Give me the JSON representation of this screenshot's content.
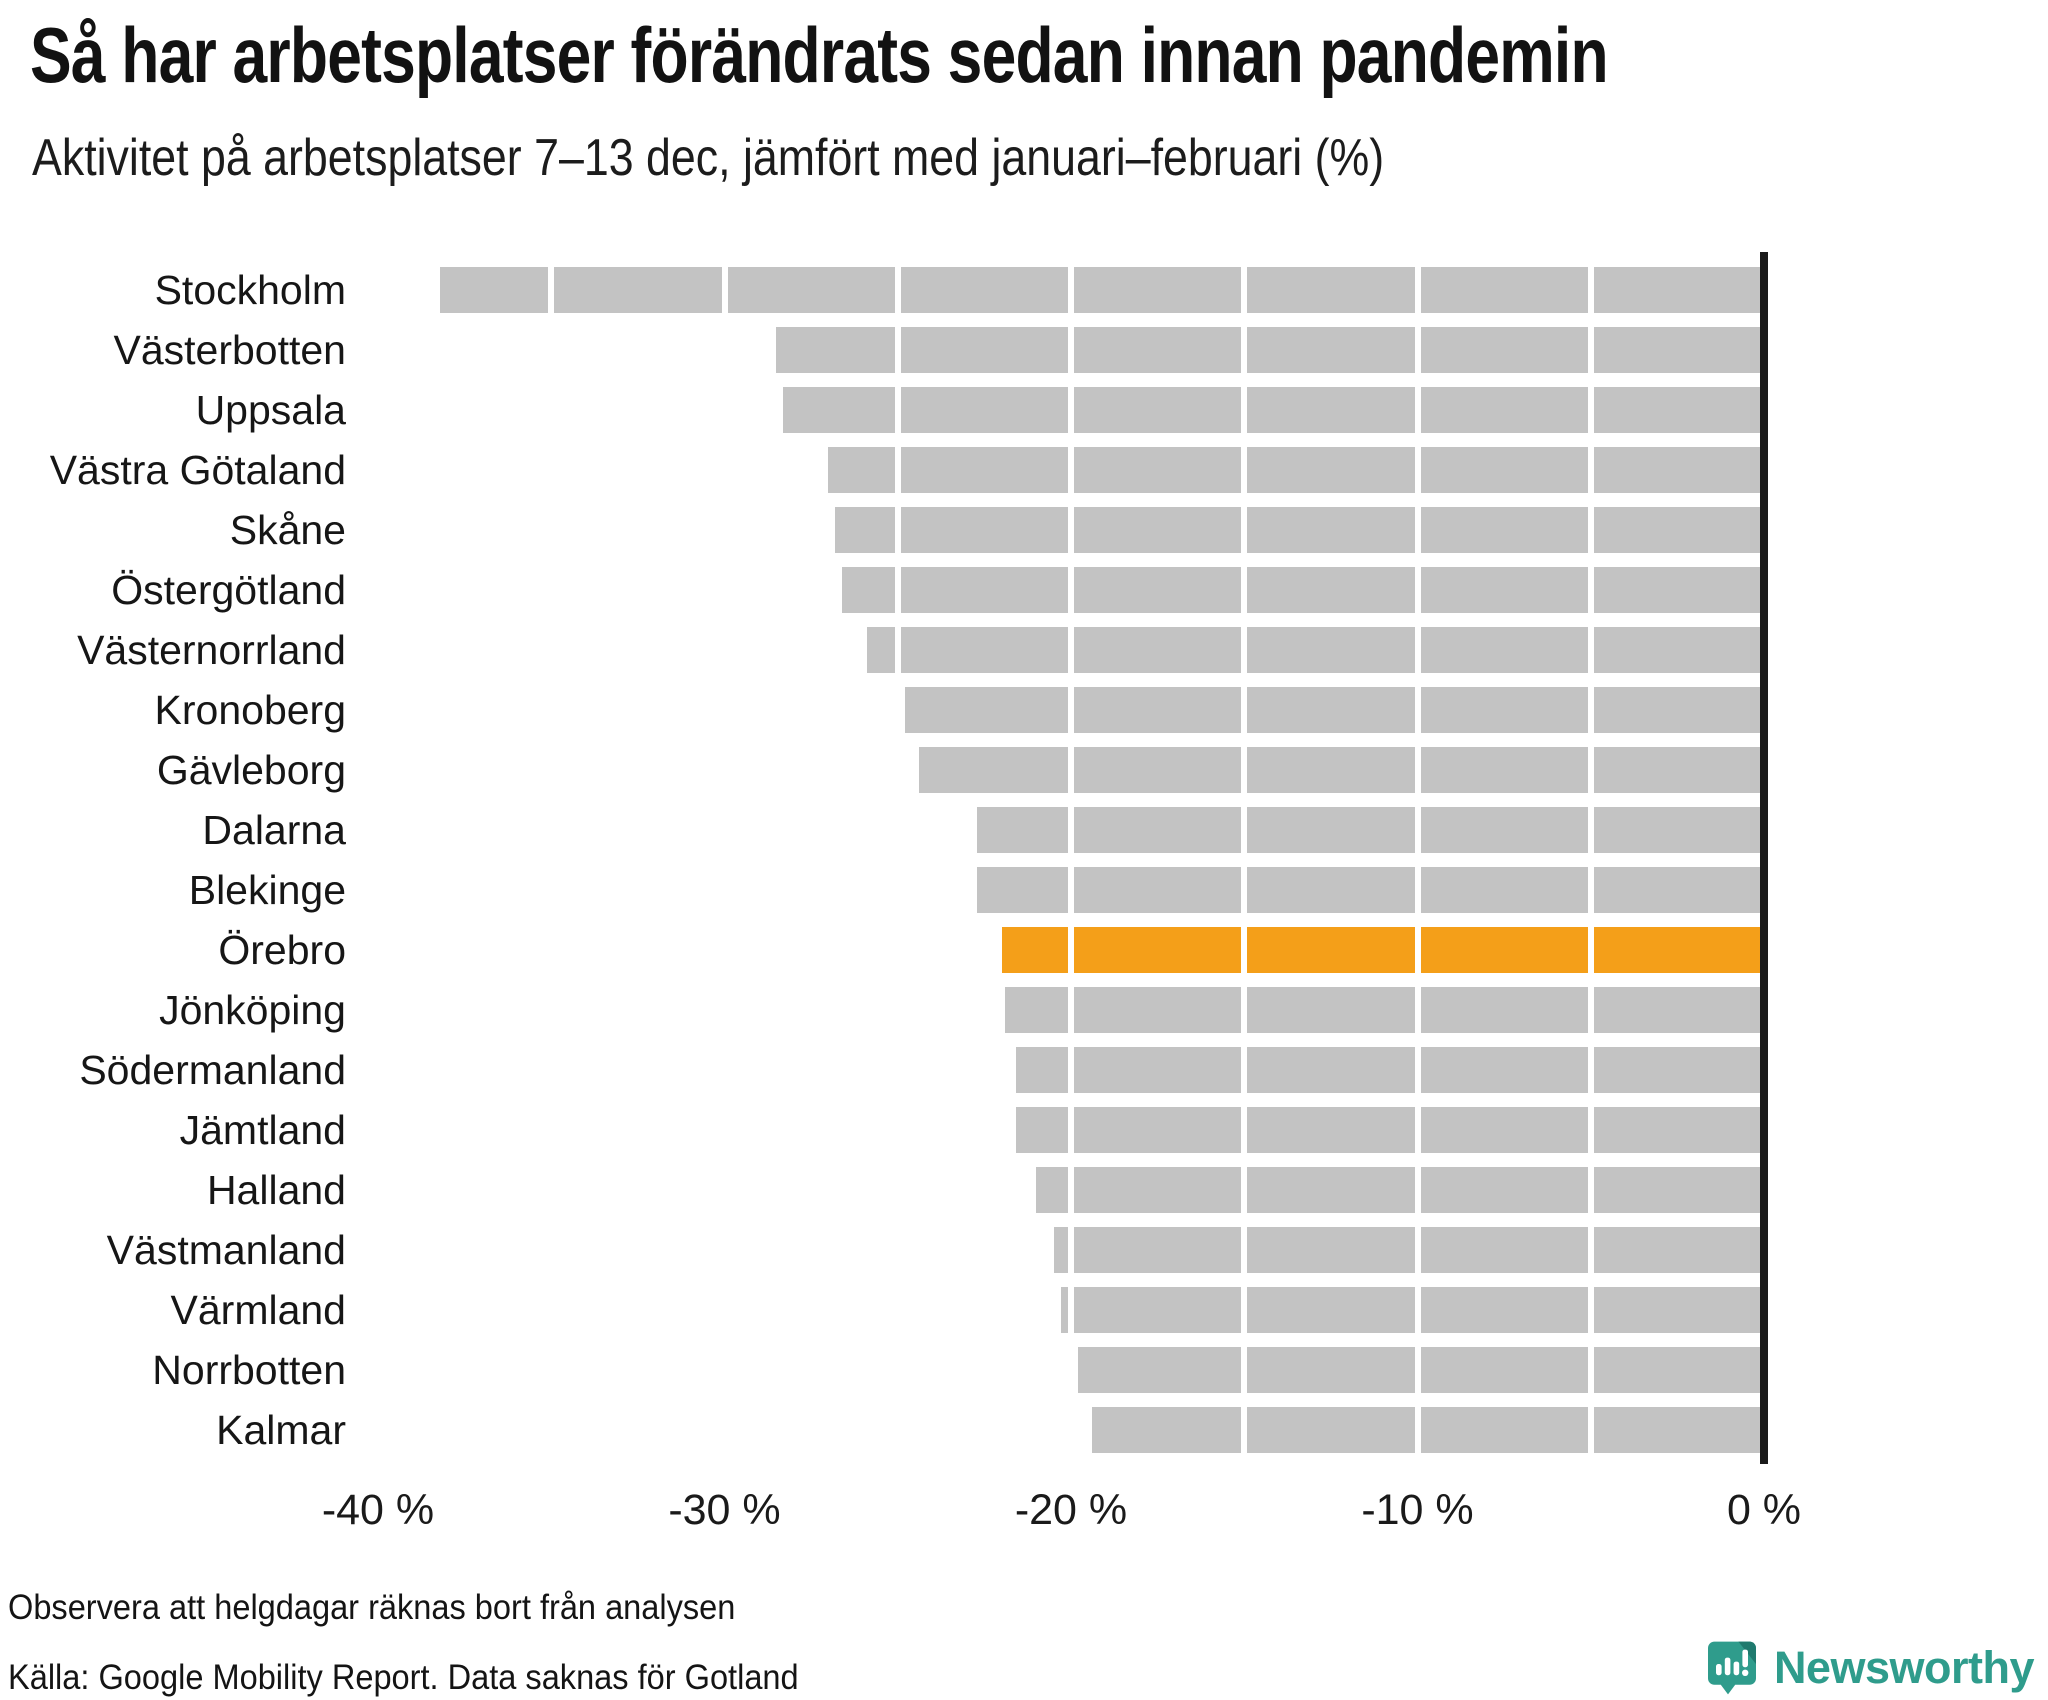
{
  "title": "Så har arbetsplatser förändrats sedan innan pandemin",
  "subtitle": "Aktivitet på arbetsplatser 7–13 dec, jämfört med januari–februari (%)",
  "chart_data": {
    "type": "bar",
    "orientation": "horizontal",
    "categories": [
      "Stockholm",
      "Västerbotten",
      "Uppsala",
      "Västra Götaland",
      "Skåne",
      "Östergötland",
      "Västernorrland",
      "Kronoberg",
      "Gävleborg",
      "Dalarna",
      "Blekinge",
      "Örebro",
      "Jönköping",
      "Södermanland",
      "Jämtland",
      "Halland",
      "Västmanland",
      "Värmland",
      "Norrbotten",
      "Kalmar"
    ],
    "values": [
      -38.2,
      -28.5,
      -28.3,
      -27.0,
      -26.8,
      -26.6,
      -25.9,
      -24.8,
      -24.4,
      -22.7,
      -22.7,
      -22.0,
      -21.9,
      -21.6,
      -21.6,
      -21.0,
      -20.5,
      -20.3,
      -19.8,
      -19.4
    ],
    "unit": "%",
    "xlim": [
      -40,
      0
    ],
    "x_tick_labels": [
      "-40 %",
      "-30 %",
      "-20 %",
      "-10 %",
      "0 %"
    ],
    "x_tick_values": [
      -40,
      -30,
      -20,
      -10,
      0
    ],
    "gridline_step": 5,
    "bar_color": "#c3c3c3",
    "highlight_category": "Örebro",
    "highlight_color": "#f49f19",
    "axis_line_color": "#1a1a1a",
    "legend": "none",
    "grid": "vertical-white-over-bars"
  },
  "footnotes": {
    "note": "Observera att helgdagar räknas bort från analysen",
    "source": "Källa: Google Mobility Report. Data saknas för Gotland"
  },
  "logo": {
    "text": "Newsworthy",
    "color": "#2f9c8c",
    "fold_color": "#1f7a6e"
  }
}
